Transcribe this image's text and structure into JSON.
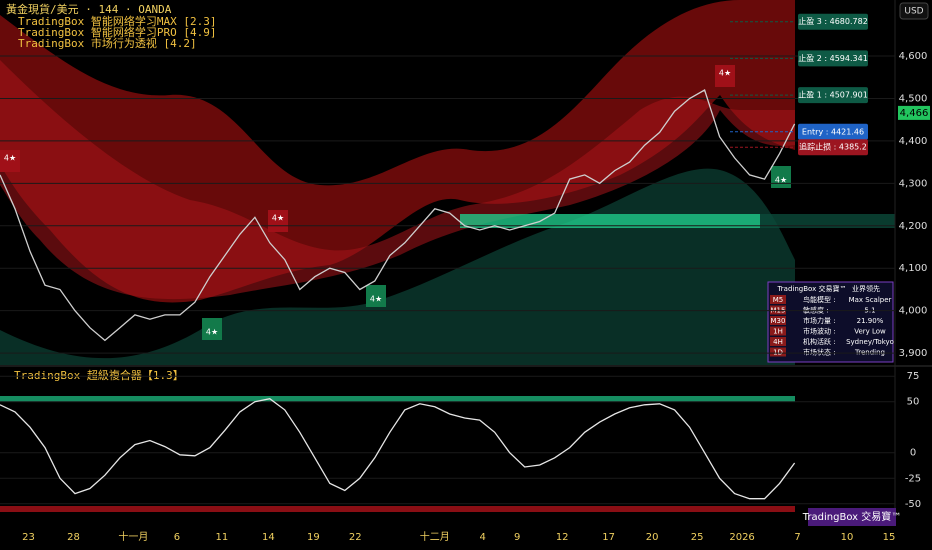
{
  "header": {
    "symbol": "黃金現貨/美元 · 144 · OANDA",
    "indicators": [
      "TradingBox 智能网络学习MAX [2.3]",
      "TradingBox 智能网络学习PRO [4.9]",
      "TradingBox 市场行为透视 [4.2]"
    ],
    "currency": "USD"
  },
  "chart_data": [
    {
      "type": "line",
      "color": "#cfcfcf",
      "x": [
        0,
        1,
        2,
        3,
        4,
        5,
        6,
        7,
        8,
        9,
        10,
        11,
        12,
        13,
        14,
        15,
        16,
        17,
        18,
        19,
        20,
        21,
        22,
        23,
        24,
        25,
        26,
        27,
        28,
        29,
        30,
        31,
        32,
        33,
        34,
        35,
        36,
        37,
        38,
        39,
        40,
        41,
        42,
        43,
        44,
        45,
        46,
        47,
        48,
        49,
        50,
        51,
        52,
        53
      ],
      "values": [
        4320,
        4240,
        4140,
        4060,
        4050,
        4000,
        3960,
        3930,
        3960,
        3990,
        3980,
        3990,
        3990,
        4020,
        4080,
        4130,
        4180,
        4220,
        4160,
        4120,
        4050,
        4080,
        4100,
        4090,
        4050,
        4070,
        4130,
        4160,
        4200,
        4240,
        4230,
        4200,
        4190,
        4200,
        4190,
        4200,
        4210,
        4230,
        4310,
        4320,
        4300,
        4330,
        4350,
        4390,
        4420,
        4470,
        4500,
        4520,
        4410,
        4360,
        4320,
        4310,
        4370,
        4440
      ],
      "xlim": [
        0,
        59.7
      ],
      "ylim": [
        3872,
        4732
      ],
      "xticks": [
        {
          "value": 1.9,
          "label": "23"
        },
        {
          "value": 4.9,
          "label": "28"
        },
        {
          "value": 8.9,
          "label": "十一月"
        },
        {
          "value": 11.8,
          "label": "6"
        },
        {
          "value": 14.8,
          "label": "11"
        },
        {
          "value": 17.9,
          "label": "14"
        },
        {
          "value": 20.9,
          "label": "19"
        },
        {
          "value": 23.7,
          "label": "22"
        },
        {
          "value": 29,
          "label": "十二月"
        },
        {
          "value": 32.2,
          "label": "4"
        },
        {
          "value": 34.5,
          "label": "9"
        },
        {
          "value": 37.5,
          "label": "12"
        },
        {
          "value": 40.6,
          "label": "17"
        },
        {
          "value": 43.5,
          "label": "20"
        },
        {
          "value": 46.5,
          "label": "25"
        },
        {
          "value": 49.5,
          "label": "2026"
        },
        {
          "value": 53.2,
          "label": "7"
        },
        {
          "value": 56.5,
          "label": "10"
        },
        {
          "value": 59.3,
          "label": "15"
        }
      ],
      "yticks": [
        {
          "value": 3900,
          "label": "3,900"
        },
        {
          "value": 4000,
          "label": "4,000"
        },
        {
          "value": 4100,
          "label": "4,100"
        },
        {
          "value": 4200,
          "label": "4,200"
        },
        {
          "value": 4300,
          "label": "4,300"
        },
        {
          "value": 4400,
          "label": "4,400"
        },
        {
          "value": 4500,
          "label": "4,500"
        },
        {
          "value": 4600,
          "label": "4,600"
        }
      ],
      "last_price": {
        "value": 4466,
        "label": "4,466"
      },
      "levels": [
        {
          "label": "止盈 3 : 4680.782",
          "value": 4680.782,
          "color": "#0e5a45"
        },
        {
          "label": "止盈 2 : 4594.341",
          "value": 4594.341,
          "color": "#0e5a45"
        },
        {
          "label": "止盈 1 : 4507.901",
          "value": 4507.901,
          "color": "#0e5a45"
        },
        {
          "label": "Entry : 4421.46",
          "value": 4421.46,
          "color": "#1f63c6"
        },
        {
          "label": "追踪止损 : 4385.2",
          "value": 4385.2,
          "color": "#9c1520"
        }
      ]
    },
    {
      "type": "line",
      "title": "TradingBox  超級複合器【1.3】",
      "color": "#e6e6e6",
      "x": [
        0,
        1,
        2,
        3,
        4,
        5,
        6,
        7,
        8,
        9,
        10,
        11,
        12,
        13,
        14,
        15,
        16,
        17,
        18,
        19,
        20,
        21,
        22,
        23,
        24,
        25,
        26,
        27,
        28,
        29,
        30,
        31,
        32,
        33,
        34,
        35,
        36,
        37,
        38,
        39,
        40,
        41,
        42,
        43,
        44,
        45,
        46,
        47,
        48,
        49,
        50,
        51,
        52,
        53
      ],
      "values": [
        47,
        40,
        25,
        5,
        -25,
        -40,
        -35,
        -22,
        -5,
        8,
        12,
        6,
        -2,
        -3,
        5,
        22,
        40,
        50,
        53,
        42,
        20,
        -5,
        -30,
        -37,
        -25,
        -5,
        20,
        42,
        48,
        45,
        38,
        34,
        32,
        20,
        0,
        -14,
        -12,
        -5,
        5,
        20,
        30,
        38,
        44,
        47,
        48,
        42,
        25,
        0,
        -25,
        -40,
        -45,
        -45,
        -30,
        -10
      ],
      "xlim": [
        0,
        59.7
      ],
      "ylim": [
        -61,
        85
      ],
      "yticks": [
        -50,
        -25,
        0,
        50,
        75
      ]
    }
  ],
  "signals": [
    "4★",
    "4★",
    "4★",
    "4★",
    "4★",
    "4★"
  ],
  "table": {
    "header": [
      "TradingBox 交易寶™",
      "业界领先"
    ],
    "rows": [
      [
        "M5",
        "鸟能模型 :",
        "Max Scalper"
      ],
      [
        "M15",
        "敏感度 :",
        "5.1"
      ],
      [
        "M30",
        "市场力量 :",
        "21.90%"
      ],
      [
        "1H",
        "市场波动 :",
        "Very Low"
      ],
      [
        "4H",
        "机构活跃 :",
        "Sydney/Tokyo"
      ],
      [
        "1D",
        "市场状态 :",
        "Trending"
      ]
    ]
  },
  "badge": "TradingBox 交易寶™"
}
